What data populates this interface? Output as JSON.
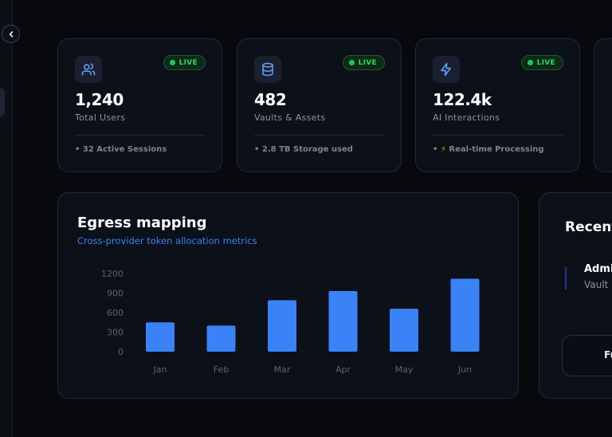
{
  "stats": [
    {
      "value": "1,240",
      "label": "Total Users",
      "footer": "• 32 Active Sessions",
      "badge": "LIVE",
      "icon": "users-icon"
    },
    {
      "value": "482",
      "label": "Vaults & Assets",
      "footer": "• 2.8 TB Storage used",
      "badge": "LIVE",
      "icon": "database-icon"
    },
    {
      "value": "122.4k",
      "label": "AI Interactions",
      "footer_prefix": "• ",
      "footer_bolt": "⚡",
      "footer": " Real-time Processing",
      "badge": "LIVE",
      "icon": "zap-icon"
    }
  ],
  "colors": {
    "accent": "#3b82f6",
    "live": "#22c55e",
    "panel": "#0c1018"
  },
  "chart": {
    "title": "Egress mapping",
    "subtitle": "Cross-provider token allocation metrics"
  },
  "chart_data": {
    "type": "bar",
    "categories": [
      "Jan",
      "Feb",
      "Mar",
      "Apr",
      "May",
      "Jun"
    ],
    "values": [
      450,
      400,
      790,
      930,
      660,
      1120
    ],
    "ylim": [
      0,
      1200
    ],
    "yticks": [
      "1200",
      "900",
      "600",
      "300",
      "0"
    ],
    "grid": false,
    "color": "#3b82f6"
  },
  "recent": {
    "title": "Recent",
    "item_title": "Admi",
    "item_sub": "Vault",
    "button": "Fu"
  }
}
